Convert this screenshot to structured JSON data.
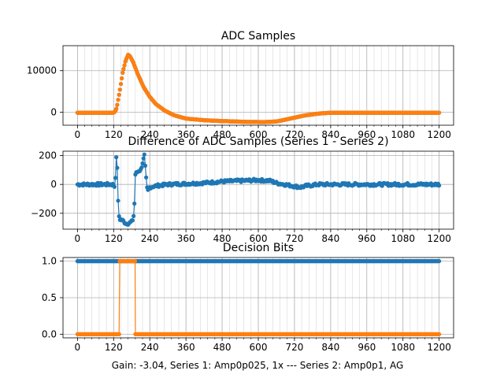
{
  "figure": {
    "footer_text": "Gain: -3.04, Series 1: Amp0p025, 1x --- Series 2: Amp0p1, AG"
  },
  "colors": {
    "series1": "#1f77b4",
    "series2": "#ff7f0e",
    "grid": "#b0b0b0"
  },
  "chart_data": [
    {
      "type": "scatter",
      "title": "ADC Samples",
      "xlim": [
        -48,
        1248
      ],
      "ylim": [
        -3100,
        16000
      ],
      "x_ticks": [
        0,
        120,
        240,
        360,
        480,
        600,
        720,
        840,
        960,
        1080,
        1200
      ],
      "x_tick_labels": [
        "0",
        "120",
        "240",
        "360",
        "480",
        "600",
        "720",
        "840",
        "960",
        "1080",
        "1200"
      ],
      "y_ticks": [
        0,
        10000
      ],
      "y_tick_labels": [
        "0",
        "10000"
      ],
      "grid": true,
      "x_minor_step": 24,
      "series": [
        {
          "color": "#1f77b4",
          "marker": "dot",
          "keypoints": [
            [
              0,
              -100
            ],
            [
              110,
              -100
            ],
            [
              120,
              -80
            ],
            [
              125,
              200
            ],
            [
              130,
              1000
            ],
            [
              140,
              5000
            ],
            [
              150,
              9500
            ],
            [
              160,
              12500
            ],
            [
              168,
              13800
            ],
            [
              175,
              13400
            ],
            [
              185,
              12000
            ],
            [
              200,
              9200
            ],
            [
              220,
              6000
            ],
            [
              240,
              3700
            ],
            [
              260,
              2000
            ],
            [
              290,
              400
            ],
            [
              320,
              -700
            ],
            [
              360,
              -1500
            ],
            [
              420,
              -1900
            ],
            [
              480,
              -2100
            ],
            [
              560,
              -2300
            ],
            [
              620,
              -2350
            ],
            [
              660,
              -2200
            ],
            [
              700,
              -1600
            ],
            [
              750,
              -800
            ],
            [
              800,
              -300
            ],
            [
              840,
              -100
            ],
            [
              1200,
              -100
            ]
          ]
        },
        {
          "color": "#ff7f0e",
          "marker": "dot",
          "keypoints": [
            [
              0,
              -100
            ],
            [
              110,
              -100
            ],
            [
              120,
              -80
            ],
            [
              125,
              200
            ],
            [
              130,
              1000
            ],
            [
              140,
              5000
            ],
            [
              150,
              9500
            ],
            [
              160,
              12500
            ],
            [
              168,
              13800
            ],
            [
              175,
              13400
            ],
            [
              185,
              12000
            ],
            [
              200,
              9200
            ],
            [
              220,
              6000
            ],
            [
              240,
              3700
            ],
            [
              260,
              2000
            ],
            [
              290,
              400
            ],
            [
              320,
              -700
            ],
            [
              360,
              -1500
            ],
            [
              420,
              -1900
            ],
            [
              480,
              -2100
            ],
            [
              560,
              -2300
            ],
            [
              620,
              -2350
            ],
            [
              660,
              -2200
            ],
            [
              700,
              -1600
            ],
            [
              750,
              -800
            ],
            [
              800,
              -300
            ],
            [
              840,
              -100
            ],
            [
              1200,
              -100
            ]
          ]
        }
      ]
    },
    {
      "type": "scatter",
      "title": "Difference of ADC Samples (Series 1 - Series 2)",
      "xlim": [
        -48,
        1248
      ],
      "ylim": [
        -310,
        230
      ],
      "x_ticks": [
        0,
        120,
        240,
        360,
        480,
        600,
        720,
        840,
        960,
        1080,
        1200
      ],
      "x_tick_labels": [
        "0",
        "120",
        "240",
        "360",
        "480",
        "600",
        "720",
        "840",
        "960",
        "1080",
        "1200"
      ],
      "y_ticks": [
        -200,
        0,
        200
      ],
      "y_tick_labels": [
        "−200",
        "0",
        "200"
      ],
      "grid": true,
      "x_minor_step": 24,
      "series": [
        {
          "color": "#1f77b4",
          "marker": "dot-line",
          "keypoints": [
            [
              0,
              0
            ],
            [
              115,
              0
            ],
            [
              120,
              -5
            ],
            [
              125,
              -20
            ],
            [
              128,
              200
            ],
            [
              132,
              120
            ],
            [
              136,
              -200
            ],
            [
              140,
              -240
            ],
            [
              150,
              -250
            ],
            [
              160,
              -270
            ],
            [
              170,
              -270
            ],
            [
              182,
              -255
            ],
            [
              188,
              -200
            ],
            [
              192,
              70
            ],
            [
              200,
              90
            ],
            [
              210,
              100
            ],
            [
              222,
              200
            ],
            [
              228,
              40
            ],
            [
              232,
              -50
            ],
            [
              240,
              -20
            ],
            [
              260,
              -10
            ],
            [
              300,
              0
            ],
            [
              360,
              5
            ],
            [
              420,
              10
            ],
            [
              480,
              20
            ],
            [
              540,
              25
            ],
            [
              600,
              30
            ],
            [
              640,
              25
            ],
            [
              660,
              10
            ],
            [
              700,
              -5
            ],
            [
              740,
              -20
            ],
            [
              760,
              -10
            ],
            [
              800,
              0
            ],
            [
              1200,
              0
            ]
          ],
          "noise": 10
        }
      ]
    },
    {
      "type": "line",
      "title": "Decision Bits",
      "xlabel": "Gain: -3.04, Series 1: Amp0p025, 1x --- Series 2: Amp0p1, AG",
      "xlim": [
        -48,
        1248
      ],
      "ylim": [
        -0.05,
        1.05
      ],
      "x_ticks": [
        0,
        120,
        240,
        360,
        480,
        600,
        720,
        840,
        960,
        1080,
        1200
      ],
      "x_tick_labels": [
        "0",
        "120",
        "240",
        "360",
        "480",
        "600",
        "720",
        "840",
        "960",
        "1080",
        "1200"
      ],
      "y_ticks": [
        0.0,
        0.5,
        1.0
      ],
      "y_tick_labels": [
        "0.0",
        "0.5",
        "1.0"
      ],
      "grid": true,
      "x_minor_step": 24,
      "series": [
        {
          "color": "#1f77b4",
          "marker": "dot-line",
          "step_segments": [
            [
              0,
              1200,
              1
            ]
          ]
        },
        {
          "color": "#ff7f0e",
          "marker": "dot-line",
          "step_segments": [
            [
              0,
              140,
              0
            ],
            [
              140,
              192,
              1
            ],
            [
              192,
              1200,
              0
            ]
          ]
        }
      ]
    }
  ]
}
